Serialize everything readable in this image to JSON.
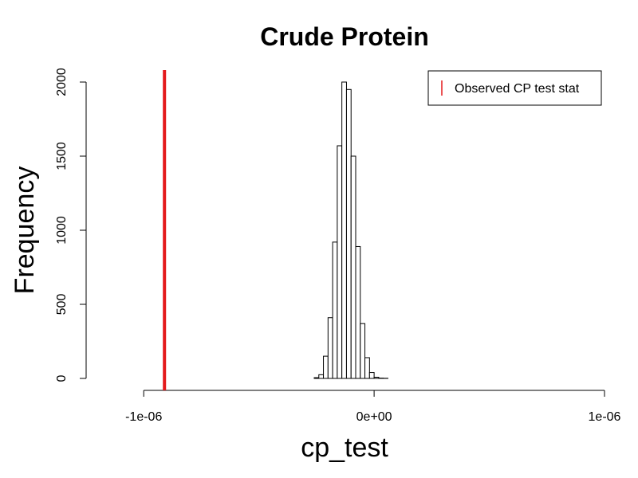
{
  "chart_data": {
    "type": "bar",
    "title": "Crude Protein",
    "xlabel": "cp_test",
    "ylabel": "Frequency",
    "xlim": [
      -1.25e-06,
      1e-06
    ],
    "ylim": [
      0,
      2000
    ],
    "x_ticks": [
      {
        "value": -1e-06,
        "label": "-1e-06"
      },
      {
        "value": 0,
        "label": "0e+00"
      },
      {
        "value": 1e-06,
        "label": "1e-06"
      }
    ],
    "y_ticks": [
      {
        "value": 0,
        "label": "0"
      },
      {
        "value": 500,
        "label": "500"
      },
      {
        "value": 1000,
        "label": "1000"
      },
      {
        "value": 1500,
        "label": "1500"
      },
      {
        "value": 2000,
        "label": "2000"
      }
    ],
    "bin_width": 2e-08,
    "bins": [
      {
        "x0": -2.6e-07,
        "count": 5
      },
      {
        "x0": -2.4e-07,
        "count": 25
      },
      {
        "x0": -2.2e-07,
        "count": 150
      },
      {
        "x0": -2e-07,
        "count": 410
      },
      {
        "x0": -1.8e-07,
        "count": 920
      },
      {
        "x0": -1.6e-07,
        "count": 1570
      },
      {
        "x0": -1.4e-07,
        "count": 2000
      },
      {
        "x0": -1.2e-07,
        "count": 1950
      },
      {
        "x0": -1e-07,
        "count": 1500
      },
      {
        "x0": -8e-08,
        "count": 890
      },
      {
        "x0": -6e-08,
        "count": 370
      },
      {
        "x0": -4e-08,
        "count": 140
      },
      {
        "x0": -2e-08,
        "count": 40
      },
      {
        "x0": 0,
        "count": 8
      },
      {
        "x0": 2e-08,
        "count": 2
      },
      {
        "x0": 4e-08,
        "count": 1
      }
    ],
    "observed_line": {
      "value": -9.1e-07,
      "color": "#e41a1c"
    },
    "bar_fill": "#ffffff",
    "bar_stroke": "#000000",
    "legend": {
      "position": "top-right",
      "entries": [
        {
          "label": "Observed CP test stat",
          "color": "#e41a1c"
        }
      ]
    }
  }
}
